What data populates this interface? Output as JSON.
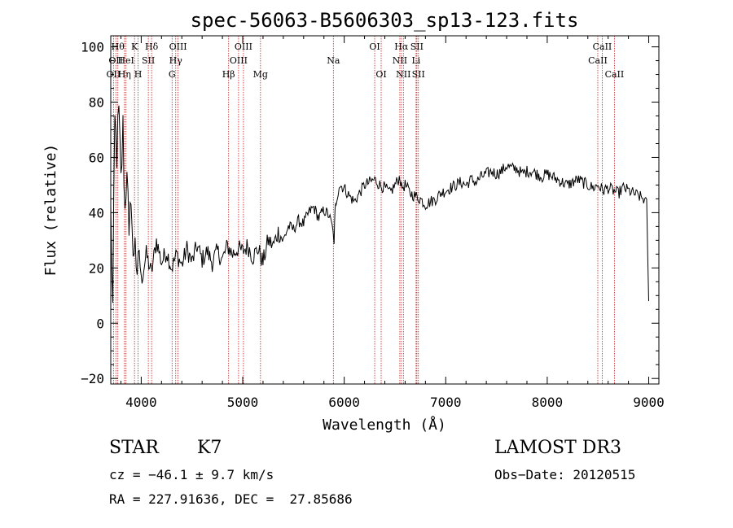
{
  "chart_data": {
    "type": "line",
    "title": "spec-56063-B5606303_sp13-123.fits",
    "xlabel": "Wavelength (Å)",
    "ylabel": "Flux (relative)",
    "xlim": [
      3700,
      9100
    ],
    "ylim": [
      -22,
      104
    ],
    "xticks": [
      4000,
      5000,
      6000,
      7000,
      8000,
      9000
    ],
    "yticks": [
      -20,
      0,
      20,
      40,
      60,
      80,
      100
    ],
    "xtick_labels": [
      "4000",
      "5000",
      "6000",
      "7000",
      "8000",
      "9000"
    ],
    "ytick_labels": [
      "−20",
      "0",
      "20",
      "40",
      "60",
      "80",
      "100"
    ],
    "grid": false,
    "series": [
      {
        "name": "spectrum",
        "x": [
          3700,
          3720,
          3740,
          3760,
          3780,
          3800,
          3820,
          3840,
          3860,
          3880,
          3900,
          3920,
          3940,
          3960,
          3980,
          4000,
          4050,
          4100,
          4150,
          4200,
          4250,
          4300,
          4350,
          4400,
          4450,
          4500,
          4550,
          4600,
          4650,
          4700,
          4750,
          4800,
          4850,
          4900,
          4950,
          5000,
          5050,
          5100,
          5150,
          5200,
          5250,
          5300,
          5350,
          5400,
          5450,
          5500,
          5550,
          5600,
          5650,
          5700,
          5750,
          5800,
          5850,
          5880,
          5900,
          5910,
          5920,
          5950,
          6000,
          6050,
          6100,
          6150,
          6200,
          6250,
          6300,
          6350,
          6400,
          6450,
          6500,
          6550,
          6563,
          6600,
          6650,
          6700,
          6750,
          6800,
          6850,
          6900,
          6950,
          7000,
          7050,
          7100,
          7150,
          7200,
          7250,
          7300,
          7350,
          7400,
          7450,
          7500,
          7550,
          7600,
          7650,
          7700,
          7750,
          7800,
          7850,
          7900,
          7950,
          8000,
          8050,
          8100,
          8150,
          8200,
          8250,
          8300,
          8350,
          8400,
          8450,
          8500,
          8550,
          8600,
          8650,
          8700,
          8750,
          8800,
          8850,
          8900,
          8950,
          8980,
          9000
        ],
        "y": [
          40,
          5,
          72,
          62,
          75,
          50,
          70,
          40,
          60,
          25,
          50,
          20,
          35,
          10,
          28,
          15,
          25,
          18,
          30,
          22,
          26,
          20,
          25,
          21,
          27,
          22,
          28,
          23,
          26,
          22,
          26,
          23,
          28,
          25,
          27,
          26,
          28,
          24,
          27,
          22,
          30,
          28,
          33,
          30,
          35,
          34,
          37,
          36,
          40,
          42,
          38,
          41,
          39,
          35,
          30,
          40,
          44,
          50,
          49,
          46,
          44,
          47,
          50,
          51,
          52,
          50,
          49,
          47,
          50,
          53,
          49,
          50,
          47,
          46,
          45,
          43,
          44,
          45,
          47,
          48,
          49,
          50,
          51,
          50,
          52,
          51,
          53,
          54,
          55,
          54,
          55,
          57,
          56,
          56,
          54,
          55,
          55,
          54,
          53,
          54,
          53,
          52,
          51,
          50,
          51,
          52,
          51,
          50,
          49,
          50,
          48,
          49,
          48,
          47,
          49,
          48,
          47,
          46,
          45,
          43,
          8
        ]
      }
    ],
    "lines": [
      {
        "wl": 3727,
        "label": "OII",
        "row": 3
      },
      {
        "wl": 3750,
        "label": "OII",
        "row": 2
      },
      {
        "wl": 3770,
        "label": "Hθ",
        "row": 1
      },
      {
        "wl": 3835,
        "label": "Hη",
        "row": 3
      },
      {
        "wl": 3850,
        "label": "HeI",
        "row": 2
      },
      {
        "wl": 3934,
        "label": "K",
        "row": 1
      },
      {
        "wl": 3969,
        "label": "H",
        "row": 3
      },
      {
        "wl": 4070,
        "label": "SII",
        "row": 2
      },
      {
        "wl": 4102,
        "label": "Hδ",
        "row": 1
      },
      {
        "wl": 4304,
        "label": "G",
        "row": 3
      },
      {
        "wl": 4340,
        "label": "Hγ",
        "row": 2
      },
      {
        "wl": 4363,
        "label": "OIII",
        "row": 1
      },
      {
        "wl": 4861,
        "label": "Hβ",
        "row": 3
      },
      {
        "wl": 4959,
        "label": "OIII",
        "row": 2
      },
      {
        "wl": 5007,
        "label": "OIII",
        "row": 1
      },
      {
        "wl": 5175,
        "label": "Mg",
        "row": 3
      },
      {
        "wl": 5893,
        "label": "Na",
        "row": 2
      },
      {
        "wl": 6300,
        "label": "OI",
        "row": 1
      },
      {
        "wl": 6364,
        "label": "OI",
        "row": 3
      },
      {
        "wl": 6548,
        "label": "NII",
        "row": 2
      },
      {
        "wl": 6563,
        "label": "Hα",
        "row": 1
      },
      {
        "wl": 6583,
        "label": "NII",
        "row": 3
      },
      {
        "wl": 6708,
        "label": "Li",
        "row": 2
      },
      {
        "wl": 6716,
        "label": "SII",
        "row": 1
      },
      {
        "wl": 6731,
        "label": "SII",
        "row": 3
      },
      {
        "wl": 8498,
        "label": "CaII",
        "row": 2
      },
      {
        "wl": 8542,
        "label": "CaII",
        "row": 1
      },
      {
        "wl": 8662,
        "label": "CaII",
        "row": 3
      }
    ]
  },
  "info": {
    "object_class": "STAR",
    "subclass": "K7",
    "survey": "LAMOST DR3",
    "cz": "cz = −46.1 ± 9.7 km/s",
    "obs_date": "Obs−Date: 20120515",
    "coords": "RA = 227.91636, DEC =  27.85686"
  },
  "colors": {
    "line_marker": "#c02020",
    "spectrum": "#000000",
    "axis": "#000000"
  }
}
